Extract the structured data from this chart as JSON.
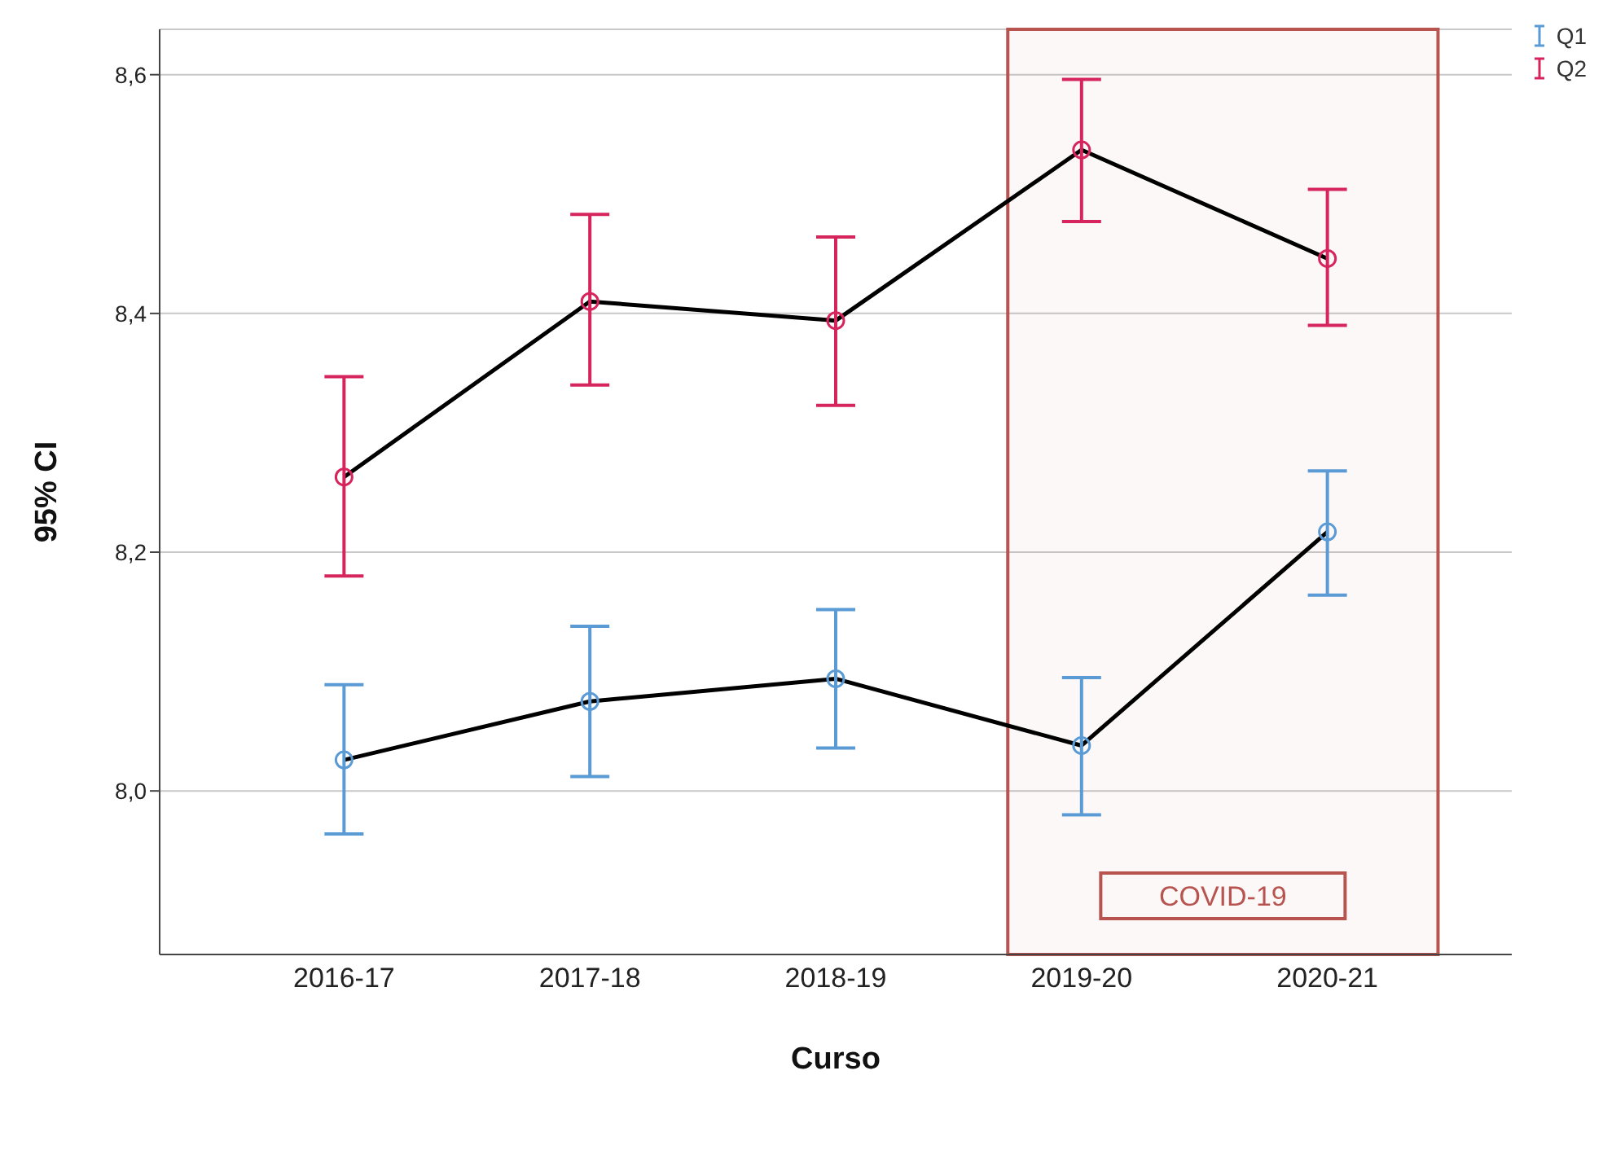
{
  "chart_data": {
    "type": "line",
    "xlabel": "Curso",
    "ylabel": "95% CI",
    "categories": [
      "2016-17",
      "2017-18",
      "2018-19",
      "2019-20",
      "2020-21"
    ],
    "series": [
      {
        "type": "line",
        "color": "#000000",
        "marker": "none",
        "values": [
          8.026,
          8.075,
          8.094,
          8.038,
          8.217
        ]
      },
      {
        "type": "line",
        "color": "#000000",
        "marker": "none",
        "values": [
          8.263,
          8.41,
          8.394,
          8.537,
          8.446
        ]
      },
      {
        "type": "scatter",
        "name": "Q1",
        "color": "#5b9bd5",
        "values": [
          8.026,
          8.075,
          8.094,
          8.038,
          8.217
        ],
        "errors": [
          [
            7.964,
            8.089
          ],
          [
            8.012,
            8.138
          ],
          [
            8.036,
            8.152
          ],
          [
            7.98,
            8.095
          ],
          [
            8.164,
            8.268
          ]
        ]
      },
      {
        "type": "scatter",
        "name": "Q2",
        "color": "#d6245c",
        "values": [
          8.263,
          8.41,
          8.394,
          8.537,
          8.446
        ],
        "errors": [
          [
            8.18,
            8.347
          ],
          [
            8.34,
            8.483
          ],
          [
            8.323,
            8.464
          ],
          [
            8.477,
            8.596
          ],
          [
            8.39,
            8.504
          ]
        ]
      }
    ],
    "ylim": [
      7.863,
      8.638
    ],
    "yticks": [
      {
        "value": 8.0,
        "label": "8,0"
      },
      {
        "value": 8.2,
        "label": "8,2"
      },
      {
        "value": 8.4,
        "label": "8,4"
      },
      {
        "value": 8.6,
        "label": "8,6"
      }
    ],
    "grid": "y",
    "legend": "top right",
    "marker": "circle",
    "line_style": "solid",
    "bands": [
      {
        "axis": "x",
        "from": "2019-20",
        "to": "2020-21",
        "label": "COVID-19",
        "color": "#b85450"
      }
    ]
  }
}
